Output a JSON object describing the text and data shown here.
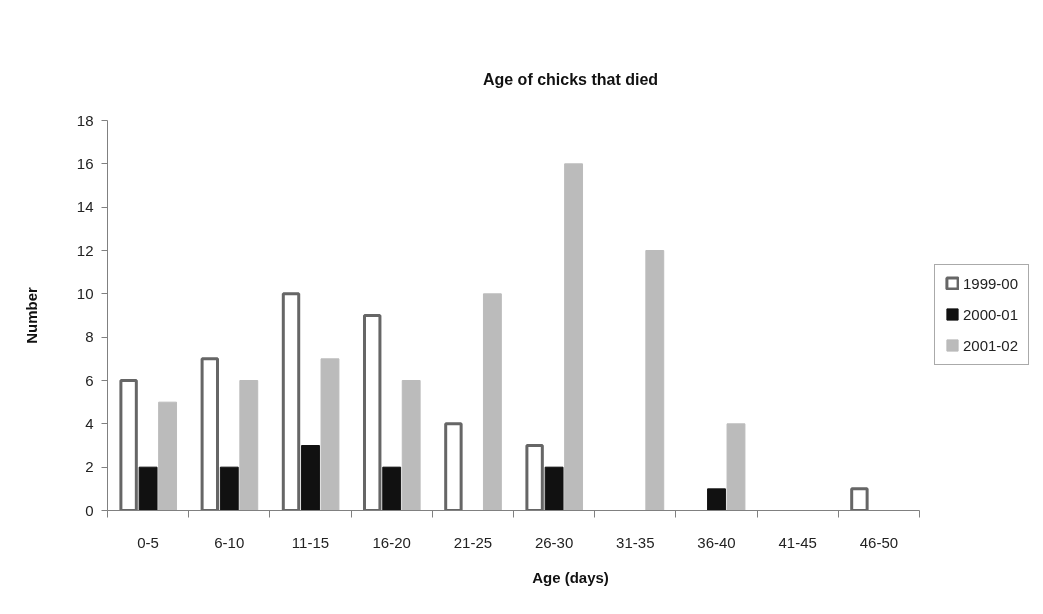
{
  "chart_data": {
    "type": "bar",
    "title": "Age of chicks that died",
    "xlabel": "Age (days)",
    "ylabel": "Number",
    "categories": [
      "0-5",
      "6-10",
      "11-15",
      "16-20",
      "21-25",
      "26-30",
      "31-35",
      "36-40",
      "41-45",
      "46-50"
    ],
    "series": [
      {
        "name": "1999-00",
        "color": "#ffffff",
        "values": [
          6,
          7,
          10,
          9,
          4,
          3,
          0,
          0,
          0,
          1
        ]
      },
      {
        "name": "2000-01",
        "color": "#111111",
        "values": [
          2,
          2,
          3,
          2,
          0,
          2,
          0,
          1,
          0,
          0
        ]
      },
      {
        "name": "2001-02",
        "color": "#bbbbbb",
        "values": [
          5,
          6,
          7,
          6,
          10,
          16,
          12,
          4,
          0,
          0
        ]
      }
    ],
    "ylim": [
      0,
      18
    ],
    "yticks": [
      0,
      2,
      4,
      6,
      8,
      10,
      12,
      14,
      16,
      18
    ],
    "legend": "right",
    "grid": false
  }
}
